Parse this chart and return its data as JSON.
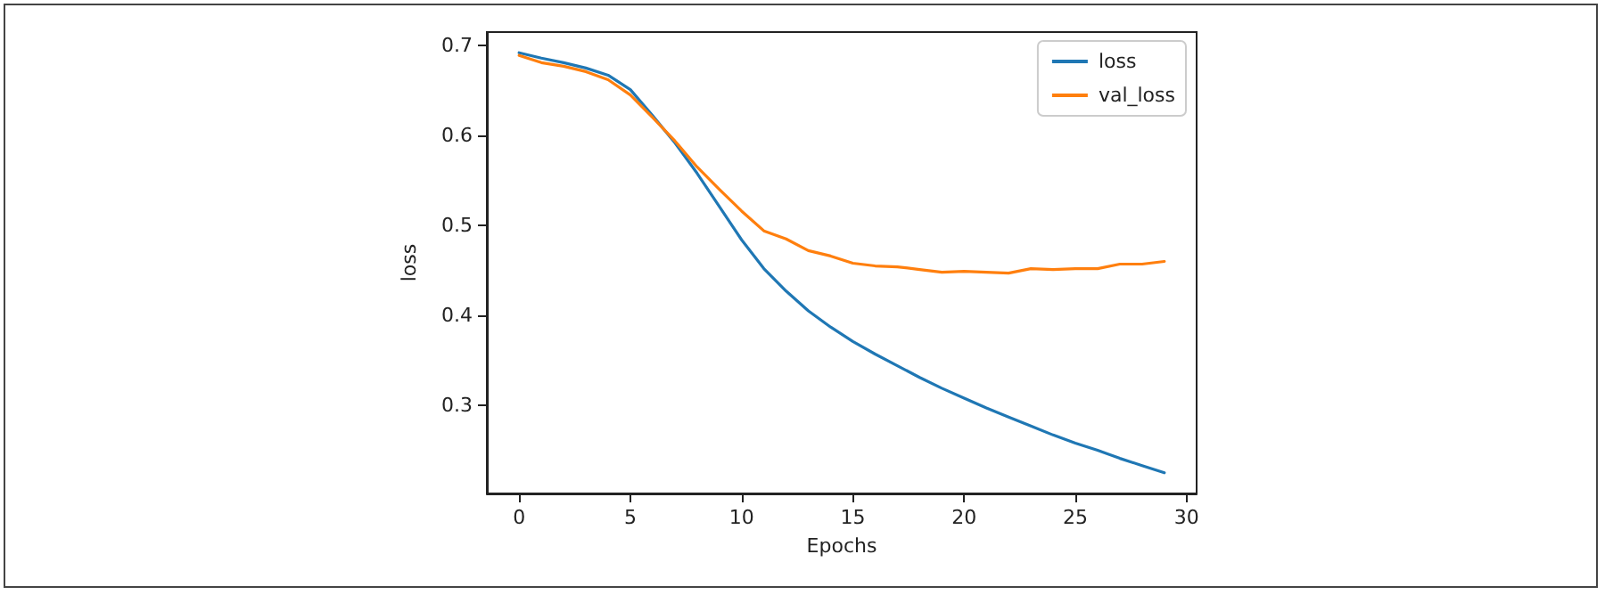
{
  "chart_data": {
    "type": "line",
    "xlabel": "Epochs",
    "ylabel": "loss",
    "x": [
      0,
      1,
      2,
      3,
      4,
      5,
      6,
      7,
      8,
      9,
      10,
      11,
      12,
      13,
      14,
      15,
      16,
      17,
      18,
      19,
      20,
      21,
      22,
      23,
      24,
      25,
      26,
      27,
      28,
      29
    ],
    "series": [
      {
        "name": "loss",
        "color": "#1f77b4",
        "values": [
          0.692,
          0.686,
          0.681,
          0.675,
          0.667,
          0.651,
          0.622,
          0.592,
          0.558,
          0.521,
          0.484,
          0.452,
          0.427,
          0.405,
          0.387,
          0.371,
          0.357,
          0.344,
          0.331,
          0.319,
          0.308,
          0.297,
          0.287,
          0.277,
          0.267,
          0.258,
          0.25,
          0.241,
          0.233,
          0.225
        ]
      },
      {
        "name": "val_loss",
        "color": "#ff7f0e",
        "values": [
          0.689,
          0.681,
          0.677,
          0.671,
          0.662,
          0.645,
          0.62,
          0.594,
          0.565,
          0.54,
          0.516,
          0.494,
          0.485,
          0.472,
          0.466,
          0.458,
          0.455,
          0.454,
          0.451,
          0.448,
          0.449,
          0.448,
          0.447,
          0.452,
          0.451,
          0.452,
          0.452,
          0.457,
          0.457,
          0.46
        ]
      }
    ],
    "xlim": [
      -1.45,
      30.45
    ],
    "ylim": [
      0.202,
      0.715
    ],
    "xticks": [
      0,
      5,
      10,
      15,
      20,
      25,
      30
    ],
    "yticks": [
      0.3,
      0.4,
      0.5,
      0.6,
      0.7
    ],
    "grid": false,
    "legend": "top right",
    "marker": "none",
    "line_style": "solid"
  }
}
